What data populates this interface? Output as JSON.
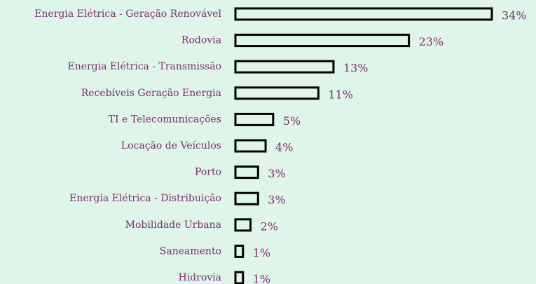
{
  "chart_data": {
    "type": "bar",
    "orientation": "horizontal",
    "categories": [
      "Energia Elétrica - Geração Renovável",
      "Rodovia",
      "Energia Elétrica - Transmissão",
      "Recebíveis Geração Energia",
      "TI e Telecomunicações",
      "Locação de Veículos",
      "Porto",
      "Energia Elétrica - Distribuição",
      "Mobilidade Urbana",
      "Saneamento",
      "Hidrovia"
    ],
    "values": [
      34,
      23,
      13,
      11,
      5,
      4,
      3,
      3,
      2,
      1,
      1
    ],
    "value_labels": [
      "34%",
      "23%",
      "13%",
      "11%",
      "5%",
      "4%",
      "3%",
      "3%",
      "2%",
      "1%",
      "1%"
    ],
    "color": "#000000"
  }
}
